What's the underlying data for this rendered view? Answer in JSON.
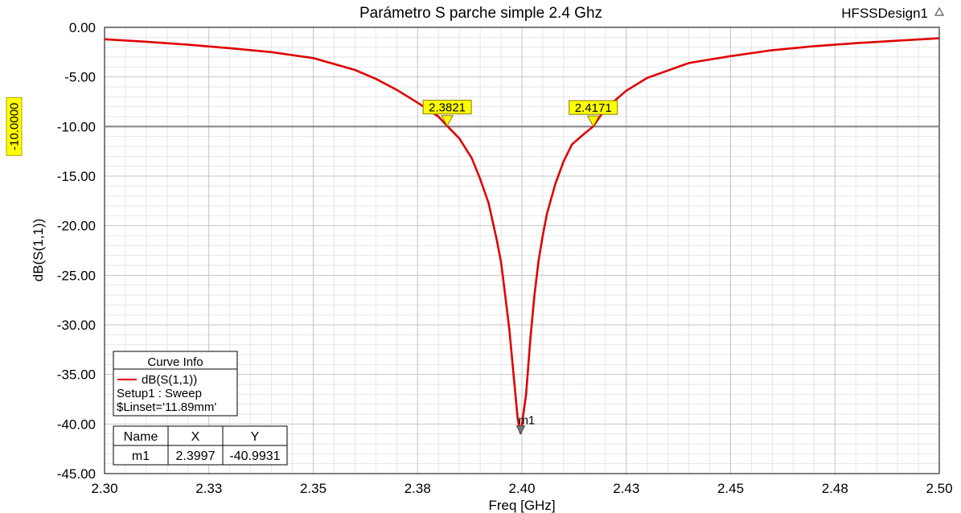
{
  "app": {
    "design_name": "HFSSDesign1"
  },
  "chart_data": {
    "type": "line",
    "title": "Parámetro S parche simple 2.4 Ghz",
    "xlabel": "Freq [GHz]",
    "ylabel": "dB(S(1,1))",
    "xlim": [
      2.3,
      2.5
    ],
    "ylim": [
      -45.0,
      0.0
    ],
    "x_ticks": [
      "2.30",
      "2.33",
      "2.35",
      "2.38",
      "2.40",
      "2.43",
      "2.45",
      "2.48",
      "2.50"
    ],
    "y_ticks": [
      "0.00",
      "-5.00",
      "-10.00",
      "-15.00",
      "-20.00",
      "-25.00",
      "-30.00",
      "-35.00",
      "-40.00",
      "-45.00"
    ],
    "grid": true,
    "series": [
      {
        "name": "dB(S(1,1))",
        "color": "#e00000",
        "x": [
          2.3,
          2.31,
          2.32,
          2.33,
          2.34,
          2.35,
          2.36,
          2.365,
          2.37,
          2.375,
          2.38,
          2.3821,
          2.385,
          2.388,
          2.39,
          2.392,
          2.394,
          2.395,
          2.396,
          2.397,
          2.398,
          2.399,
          2.3997,
          2.401,
          2.402,
          2.403,
          2.404,
          2.405,
          2.406,
          2.408,
          2.41,
          2.412,
          2.415,
          2.4171,
          2.42,
          2.425,
          2.43,
          2.44,
          2.45,
          2.46,
          2.47,
          2.48,
          2.49,
          2.5
        ],
        "y": [
          -1.2,
          -1.45,
          -1.75,
          -2.1,
          -2.5,
          -3.1,
          -4.3,
          -5.2,
          -6.3,
          -7.6,
          -9.0,
          -9.95,
          -11.2,
          -13.2,
          -15.3,
          -17.7,
          -21.5,
          -23.7,
          -27.0,
          -30.5,
          -35.0,
          -39.5,
          -40.99,
          -37.0,
          -31.5,
          -27.0,
          -23.5,
          -21.0,
          -18.8,
          -15.8,
          -13.5,
          -11.8,
          -10.7,
          -9.99,
          -8.2,
          -6.4,
          -5.1,
          -3.6,
          -2.9,
          -2.3,
          -1.9,
          -1.6,
          -1.35,
          -1.1
        ]
      }
    ],
    "reference_line": {
      "y": -10.0,
      "label": "-10.0000",
      "color": "#808080"
    },
    "markers": [
      {
        "x": 2.3821,
        "y": -9.95,
        "label": "2.3821"
      },
      {
        "x": 2.4171,
        "y": -9.99,
        "label": "2.4171"
      },
      {
        "x": 2.3997,
        "y": -40.9931,
        "label": "m1"
      }
    ],
    "curve_info": {
      "title": "Curve Info",
      "series_label": "dB(S(1,1))",
      "lines": [
        "Setup1 : Sweep",
        "$Linset='11.89mm'"
      ]
    },
    "marker_table": {
      "headers": [
        "Name",
        "X",
        "Y"
      ],
      "rows": [
        [
          "m1",
          "2.3997",
          "-40.9931"
        ]
      ]
    }
  }
}
